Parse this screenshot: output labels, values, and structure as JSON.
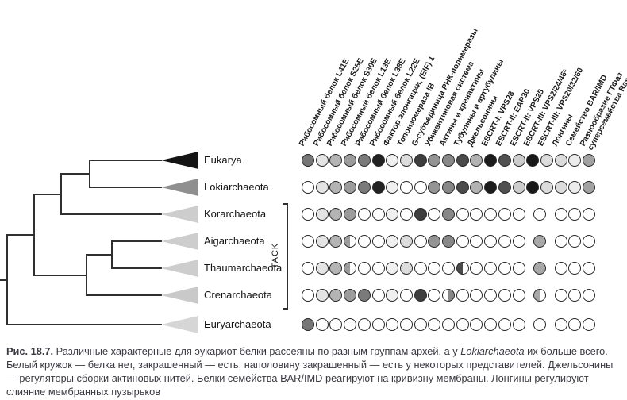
{
  "figure": {
    "background": "#ffffff"
  },
  "tree": {
    "clade_bracket_label": "TACK",
    "taxa": [
      {
        "name": "Eukarya",
        "triangle_color": "#141414"
      },
      {
        "name": "Lokiarchaeota",
        "triangle_color": "#8f8f8f"
      },
      {
        "name": "Korarchaeota",
        "triangle_color": "#cdcdcd"
      },
      {
        "name": "Aigarchaeota",
        "triangle_color": "#cdcdcd"
      },
      {
        "name": "Thaumarchaeota",
        "triangle_color": "#cdcdcd"
      },
      {
        "name": "Crenarchaeota",
        "triangle_color": "#c9c9c9"
      },
      {
        "name": "Euryarchaeota",
        "triangle_color": "#d6d6d6"
      }
    ]
  },
  "matrix": {
    "state_codes": {
      "F": "закрашенный кружок — белок есть",
      "E": "белый кружок — белка нет",
      "H": "наполовину закрашенный (левая половина) — есть у некоторых представителей",
      "HR": "наполовину закрашенный (правая половина)",
      "X": "кружка нет (два столбца ESCRT-III объединены в один кружок)"
    },
    "merged_color": "#a8a8a8",
    "columns": [
      {
        "label": "Рибосомный белок L41E",
        "color": "#767676"
      },
      {
        "label": "Рибосомный белок S25E",
        "color": "#e4e4e4"
      },
      {
        "label": "Рибосомный белок S30E",
        "color": "#b4b4b4"
      },
      {
        "label": "Рибосомный белок L13E",
        "color": "#9c9c9c"
      },
      {
        "label": "Рибосомный белок L38E",
        "color": "#7a7a7a"
      },
      {
        "label": "Рибосомный белок L22E",
        "color": "#222222"
      },
      {
        "label": "Фактор элонгации, (EIF) 1",
        "color": "#f0f0f0"
      },
      {
        "label": "Топоизомераза IB",
        "color": "#dcdcdc"
      },
      {
        "label": "G-субъединица РНК-полимеразы",
        "color": "#3e3e3e"
      },
      {
        "label": "Убиквитиновая система",
        "color": "#949494"
      },
      {
        "label": "Актины и кренактины",
        "color": "#888888"
      },
      {
        "label": "Тубулины и артубулины",
        "color": "#4a4a4a"
      },
      {
        "label": "Джельсонины",
        "color": "#b2b2b2"
      },
      {
        "label": "ESCRT-I: VPS28",
        "color": "#1c1c1c"
      },
      {
        "label": "ESCRT-II: EAP30",
        "color": "#505050"
      },
      {
        "label": "ESCRT-II: VPS25",
        "color": "#cccccc"
      },
      {
        "label": "ESCRT-III: VPS2/24/46ᶜ",
        "color": "#181818"
      },
      {
        "label": "ESCRT-III: VPS20/32/60",
        "color": "#dcdcdc"
      },
      {
        "label": "Лонгины",
        "color": "#dcdcdc"
      },
      {
        "label": "Семейство BAR/IMD",
        "color": "#ececec"
      },
      {
        "label": "Разнообразие ГТФаз\nсуперсемейства Ras",
        "color": "#a2a2a2"
      }
    ],
    "rows": [
      {
        "taxon": "Eukarya",
        "cells": [
          "F",
          "F",
          "F",
          "F",
          "F",
          "F",
          "F",
          "F",
          "F",
          "F",
          "F",
          "F",
          "F",
          "F",
          "F",
          "F",
          "F",
          "F",
          "F",
          "F",
          "F"
        ],
        "merged": null
      },
      {
        "taxon": "Lokiarchaeota",
        "cells": [
          "E",
          "F",
          "F",
          "F",
          "F",
          "F",
          "F",
          "E",
          "E",
          "F",
          "F",
          "F",
          "F",
          "F",
          "F",
          "F",
          "F",
          "F",
          "F",
          "F",
          "F"
        ],
        "merged": null
      },
      {
        "taxon": "Korarchaeota",
        "cells": [
          "E",
          "F",
          "F",
          "F",
          "E",
          "E",
          "F",
          "E",
          "F",
          "E",
          "F",
          "E",
          "E",
          "E",
          "E",
          "E",
          "X",
          "X",
          "E",
          "E",
          "E"
        ],
        "merged": "E"
      },
      {
        "taxon": "Aigarchaeota",
        "cells": [
          "E",
          "F",
          "F",
          "H",
          "E",
          "E",
          "F",
          "F",
          "E",
          "F",
          "F",
          "E",
          "E",
          "E",
          "E",
          "E",
          "X",
          "X",
          "E",
          "E",
          "E"
        ],
        "merged": "F"
      },
      {
        "taxon": "Thaumarchaeota",
        "cells": [
          "E",
          "F",
          "F",
          "H",
          "E",
          "E",
          "F",
          "F",
          "E",
          "E",
          "E",
          "H",
          "E",
          "E",
          "E",
          "E",
          "X",
          "X",
          "E",
          "E",
          "E"
        ],
        "merged": "F"
      },
      {
        "taxon": "Crenarchaeota",
        "cells": [
          "E",
          "F",
          "F",
          "F",
          "F",
          "E",
          "F",
          "E",
          "F",
          "E",
          "HR",
          "E",
          "E",
          "E",
          "E",
          "E",
          "X",
          "X",
          "E",
          "E",
          "E"
        ],
        "merged": "H"
      },
      {
        "taxon": "Euryarchaeota",
        "cells": [
          "F",
          "E",
          "E",
          "E",
          "E",
          "E",
          "E",
          "E",
          "E",
          "E",
          "E",
          "E",
          "E",
          "E",
          "E",
          "E",
          "X",
          "X",
          "E",
          "E",
          "E"
        ],
        "merged": "E"
      }
    ]
  },
  "caption": {
    "label": "Рис. 18.7.",
    "before_italic": " Различные характерные для эукариот белки рассеяны по разным группам архей, а у ",
    "italic_term": "Lokiarchaeota",
    "after_italic": " их больше всего. Белый кружок — белка нет, закрашенный — есть, наполовину закрашенный — есть у некоторых представителей. Джельсонины — регуляторы сборки актиновых нитей. Белки семейства BAR/IMD реагируют на кривизну мембраны. Лонгины регулируют слияние мембранных пузырьков"
  }
}
